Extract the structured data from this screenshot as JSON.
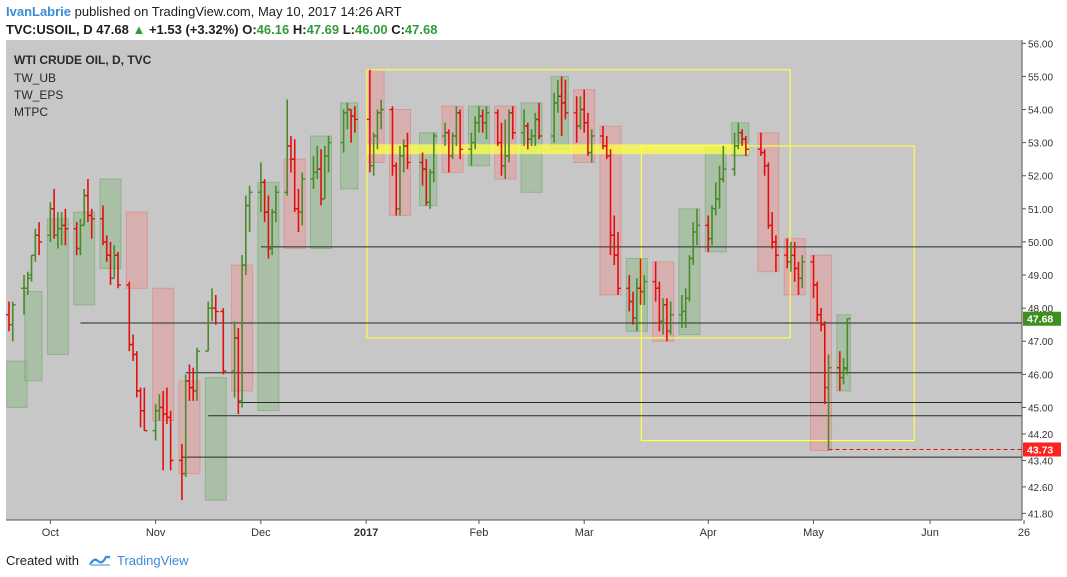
{
  "header": {
    "username": "IvanLabrie",
    "published": "published on TradingView.com, May 10, 2017 14:26 ART",
    "symbol": "TVC:USOIL, D",
    "last": "47.68",
    "change": "+1.53 (+3.32%)",
    "o_label": "O:",
    "o_value": "46.16",
    "h_label": "H:",
    "h_value": "47.69",
    "l_label": "L:",
    "l_value": "46.00",
    "c_label": "C:",
    "c_value": "47.68"
  },
  "footer": {
    "created": "Created with",
    "brand": "TradingView"
  },
  "colors": {
    "plot_bg": "#c7c7c7",
    "up": "#4a8a2a",
    "down": "#e01010",
    "box_yellow": "#ffff44",
    "price_tag_up": "#3f8f20",
    "price_tag_down": "#ff2020"
  },
  "chart_data": {
    "type": "bar",
    "title": "WTI CRUDE OIL, D, TVC",
    "indicators": [
      "TW_UB",
      "TW_EPS",
      "MTPC"
    ],
    "x_ticks": [
      "Oct",
      "Nov",
      "Dec",
      "2017",
      "Feb",
      "Mar",
      "Apr",
      "May",
      "Jun",
      "26"
    ],
    "y_ticks": [
      "56.00",
      "55.00",
      "54.00",
      "53.00",
      "52.00",
      "51.00",
      "50.00",
      "49.00",
      "48.00",
      "47.00",
      "46.00",
      "45.00",
      "44.20",
      "43.40",
      "42.60",
      "41.80"
    ],
    "ylim": [
      41.6,
      56.1
    ],
    "price_labels": [
      {
        "text": "47.68",
        "value": 47.68,
        "kind": "up"
      },
      {
        "text": "43.73",
        "value": 43.73,
        "kind": "down"
      }
    ],
    "horizontal_levels": [
      49.85,
      47.55,
      46.05,
      45.15,
      44.75,
      43.5
    ],
    "boxes": [
      {
        "from": "2017-01-03",
        "to": "2017-04-24",
        "high": 55.2,
        "low": 47.1
      },
      {
        "from": "2017-03-17",
        "to": "2017-05-27",
        "high": 52.9,
        "low": 44.0
      }
    ],
    "ohlc": [
      [
        "2016-09-29",
        47.8,
        48.2,
        47.3,
        47.5
      ],
      [
        "2016-09-30",
        47.5,
        48.2,
        47.0,
        48.1
      ],
      [
        "2016-10-03",
        48.6,
        49.0,
        47.8,
        48.6
      ],
      [
        "2016-10-04",
        48.6,
        49.1,
        48.4,
        48.9
      ],
      [
        "2016-10-05",
        49.0,
        49.6,
        48.8,
        49.6
      ],
      [
        "2016-10-06",
        49.6,
        50.4,
        49.4,
        50.2
      ],
      [
        "2016-10-07",
        50.2,
        50.6,
        49.6,
        50.0
      ],
      [
        "2016-10-10",
        50.2,
        51.2,
        50.0,
        51.0
      ],
      [
        "2016-10-11",
        51.0,
        51.6,
        50.1,
        50.2
      ],
      [
        "2016-10-12",
        50.2,
        50.9,
        49.8,
        50.4
      ],
      [
        "2016-10-13",
        50.4,
        50.9,
        49.9,
        50.5
      ],
      [
        "2016-10-14",
        50.5,
        51.0,
        49.9,
        50.4
      ],
      [
        "2016-10-17",
        50.4,
        50.6,
        49.6,
        49.8
      ],
      [
        "2016-10-18",
        49.8,
        50.7,
        49.6,
        50.5
      ],
      [
        "2016-10-19",
        50.5,
        51.6,
        50.5,
        51.4
      ],
      [
        "2016-10-20",
        51.4,
        51.9,
        50.6,
        50.8
      ],
      [
        "2016-10-21",
        50.8,
        51.0,
        50.1,
        50.7
      ],
      [
        "2016-10-24",
        50.7,
        51.1,
        49.9,
        50.0
      ],
      [
        "2016-10-25",
        50.0,
        50.2,
        49.4,
        49.6
      ],
      [
        "2016-10-26",
        49.6,
        50.0,
        48.7,
        48.9
      ],
      [
        "2016-10-27",
        48.9,
        49.9,
        48.9,
        49.6
      ],
      [
        "2016-10-28",
        49.6,
        49.7,
        48.6,
        48.7
      ],
      [
        "2016-10-31",
        48.7,
        48.8,
        46.7,
        46.9
      ],
      [
        "2016-11-01",
        46.9,
        47.2,
        46.4,
        46.6
      ],
      [
        "2016-11-02",
        46.6,
        46.7,
        45.3,
        45.5
      ],
      [
        "2016-11-03",
        45.5,
        45.6,
        44.4,
        44.9
      ],
      [
        "2016-11-04",
        44.9,
        45.6,
        44.3,
        44.3
      ],
      [
        "2016-11-07",
        44.3,
        45.1,
        44.0,
        44.9
      ],
      [
        "2016-11-08",
        44.9,
        45.4,
        44.6,
        45.0
      ],
      [
        "2016-11-09",
        45.0,
        45.5,
        43.1,
        44.8
      ],
      [
        "2016-11-10",
        44.8,
        45.6,
        44.5,
        44.7
      ],
      [
        "2016-11-11",
        44.7,
        44.9,
        43.1,
        43.4
      ],
      [
        "2016-11-14",
        43.4,
        43.9,
        42.2,
        43.0
      ],
      [
        "2016-11-15",
        43.0,
        46.0,
        42.9,
        45.8
      ],
      [
        "2016-11-16",
        45.8,
        46.3,
        45.2,
        45.6
      ],
      [
        "2016-11-17",
        45.6,
        46.2,
        45.2,
        45.5
      ],
      [
        "2016-11-18",
        45.5,
        46.8,
        45.2,
        46.7
      ],
      [
        "2016-11-21",
        46.7,
        48.2,
        46.7,
        48.0
      ],
      [
        "2016-11-22",
        48.0,
        48.6,
        47.6,
        48.0
      ],
      [
        "2016-11-23",
        48.0,
        48.4,
        47.5,
        47.9
      ],
      [
        "2016-11-25",
        47.9,
        48.0,
        46.0,
        46.1
      ],
      [
        "2016-11-28",
        46.1,
        47.6,
        45.3,
        47.1
      ],
      [
        "2016-11-29",
        47.1,
        47.4,
        44.8,
        45.2
      ],
      [
        "2016-11-30",
        45.2,
        49.6,
        45.0,
        49.3
      ],
      [
        "2016-12-01",
        49.3,
        51.4,
        49.0,
        51.1
      ],
      [
        "2016-12-02",
        51.1,
        51.7,
        50.3,
        51.5
      ],
      [
        "2016-12-05",
        51.5,
        52.4,
        50.9,
        51.8
      ],
      [
        "2016-12-06",
        51.8,
        51.9,
        50.6,
        50.9
      ],
      [
        "2016-12-07",
        50.9,
        51.4,
        49.5,
        49.8
      ],
      [
        "2016-12-08",
        49.8,
        51.0,
        49.6,
        50.9
      ],
      [
        "2016-12-09",
        50.9,
        51.7,
        50.6,
        51.5
      ],
      [
        "2016-12-12",
        51.5,
        54.3,
        51.4,
        52.9
      ],
      [
        "2016-12-13",
        52.9,
        53.2,
        52.1,
        52.5
      ],
      [
        "2016-12-14",
        52.5,
        53.1,
        50.9,
        51.0
      ],
      [
        "2016-12-15",
        51.0,
        51.6,
        50.3,
        50.9
      ],
      [
        "2016-12-16",
        50.9,
        52.1,
        50.5,
        51.9
      ],
      [
        "2016-12-19",
        51.9,
        52.6,
        51.6,
        52.1
      ],
      [
        "2016-12-20",
        52.1,
        52.9,
        51.9,
        52.2
      ],
      [
        "2016-12-21",
        52.2,
        52.8,
        51.1,
        51.3
      ],
      [
        "2016-12-22",
        51.3,
        52.9,
        51.3,
        52.6
      ],
      [
        "2016-12-23",
        52.6,
        53.2,
        52.1,
        53.0
      ],
      [
        "2016-12-27",
        53.0,
        54.0,
        52.7,
        53.9
      ],
      [
        "2016-12-28",
        53.9,
        54.2,
        53.4,
        54.0
      ],
      [
        "2016-12-29",
        54.0,
        54.0,
        53.0,
        53.8
      ],
      [
        "2016-12-30",
        53.8,
        54.1,
        53.3,
        53.7
      ],
      [
        "2017-01-03",
        53.7,
        55.2,
        52.1,
        52.3
      ],
      [
        "2017-01-04",
        52.3,
        53.3,
        52.0,
        53.2
      ],
      [
        "2017-01-05",
        53.2,
        54.0,
        52.8,
        53.9
      ],
      [
        "2017-01-06",
        53.9,
        54.3,
        53.4,
        54.0
      ],
      [
        "2017-01-09",
        54.0,
        54.1,
        52.0,
        52.3
      ],
      [
        "2017-01-10",
        52.3,
        52.4,
        50.8,
        51.0
      ],
      [
        "2017-01-11",
        51.0,
        52.9,
        50.8,
        52.6
      ],
      [
        "2017-01-12",
        52.6,
        53.1,
        52.1,
        52.9
      ],
      [
        "2017-01-13",
        52.9,
        53.3,
        52.2,
        52.4
      ],
      [
        "2017-01-17",
        52.4,
        52.7,
        51.7,
        52.2
      ],
      [
        "2017-01-18",
        52.2,
        52.5,
        51.1,
        51.2
      ],
      [
        "2017-01-19",
        51.2,
        52.2,
        51.0,
        52.1
      ],
      [
        "2017-01-20",
        52.1,
        53.3,
        51.8,
        53.2
      ],
      [
        "2017-01-23",
        53.2,
        53.6,
        52.9,
        53.3
      ],
      [
        "2017-01-24",
        53.3,
        53.4,
        52.1,
        52.6
      ],
      [
        "2017-01-25",
        52.6,
        53.3,
        52.5,
        53.2
      ],
      [
        "2017-01-26",
        53.2,
        54.1,
        52.9,
        53.9
      ],
      [
        "2017-01-27",
        53.9,
        54.0,
        52.5,
        52.8
      ],
      [
        "2017-01-30",
        52.8,
        53.3,
        52.3,
        53.0
      ],
      [
        "2017-01-31",
        53.0,
        53.8,
        52.8,
        53.6
      ],
      [
        "2017-02-01",
        53.6,
        54.1,
        53.3,
        53.8
      ],
      [
        "2017-02-02",
        53.8,
        54.0,
        53.3,
        53.6
      ],
      [
        "2017-02-03",
        53.6,
        54.1,
        53.1,
        53.9
      ],
      [
        "2017-02-06",
        53.9,
        54.0,
        52.9,
        53.0
      ],
      [
        "2017-02-07",
        53.0,
        53.6,
        52.0,
        52.3
      ],
      [
        "2017-02-08",
        52.3,
        53.7,
        51.9,
        52.6
      ],
      [
        "2017-02-09",
        52.6,
        54.0,
        52.4,
        53.9
      ],
      [
        "2017-02-10",
        53.9,
        54.1,
        53.1,
        53.3
      ],
      [
        "2017-02-13",
        53.3,
        54.0,
        52.9,
        53.5
      ],
      [
        "2017-02-14",
        53.5,
        53.6,
        52.8,
        53.1
      ],
      [
        "2017-02-15",
        53.1,
        53.4,
        52.9,
        53.2
      ],
      [
        "2017-02-16",
        53.2,
        53.9,
        52.9,
        53.7
      ],
      [
        "2017-02-17",
        53.7,
        54.2,
        53.1,
        53.2
      ],
      [
        "2017-02-21",
        53.2,
        54.5,
        53.0,
        54.2
      ],
      [
        "2017-02-22",
        54.2,
        54.9,
        53.9,
        54.4
      ],
      [
        "2017-02-23",
        54.4,
        55.0,
        53.2,
        54.2
      ],
      [
        "2017-02-24",
        54.2,
        54.9,
        53.7,
        53.9
      ],
      [
        "2017-02-27",
        53.9,
        54.4,
        53.0,
        53.5
      ],
      [
        "2017-02-28",
        53.5,
        54.4,
        53.4,
        54.0
      ],
      [
        "2017-03-01",
        54.0,
        54.6,
        53.3,
        53.6
      ],
      [
        "2017-03-02",
        53.6,
        53.9,
        52.6,
        52.7
      ],
      [
        "2017-03-03",
        52.7,
        53.4,
        52.4,
        53.2
      ],
      [
        "2017-03-06",
        53.2,
        53.5,
        52.8,
        52.9
      ],
      [
        "2017-03-07",
        52.9,
        53.2,
        52.5,
        52.6
      ],
      [
        "2017-03-08",
        52.6,
        52.8,
        49.6,
        50.2
      ],
      [
        "2017-03-09",
        50.2,
        50.8,
        49.3,
        49.6
      ],
      [
        "2017-03-10",
        49.6,
        50.3,
        48.4,
        48.6
      ],
      [
        "2017-03-13",
        48.6,
        49.0,
        47.9,
        48.2
      ],
      [
        "2017-03-14",
        48.2,
        48.5,
        47.5,
        47.7
      ],
      [
        "2017-03-15",
        47.7,
        48.9,
        47.3,
        48.6
      ],
      [
        "2017-03-16",
        48.6,
        49.5,
        48.1,
        48.5
      ],
      [
        "2017-03-17",
        48.5,
        49.0,
        48.1,
        48.8
      ],
      [
        "2017-03-20",
        48.8,
        49.4,
        48.2,
        48.6
      ],
      [
        "2017-03-21",
        48.6,
        48.8,
        47.3,
        47.6
      ],
      [
        "2017-03-22",
        47.6,
        48.3,
        47.2,
        48.1
      ],
      [
        "2017-03-23",
        48.1,
        48.3,
        47.0,
        47.3
      ],
      [
        "2017-03-24",
        47.3,
        48.2,
        47.2,
        47.8
      ],
      [
        "2017-03-27",
        47.8,
        48.4,
        47.4,
        47.9
      ],
      [
        "2017-03-28",
        47.9,
        48.6,
        47.4,
        48.3
      ],
      [
        "2017-03-29",
        48.3,
        49.6,
        48.2,
        49.5
      ],
      [
        "2017-03-30",
        49.5,
        50.6,
        49.3,
        50.3
      ],
      [
        "2017-03-31",
        50.3,
        51.0,
        49.9,
        50.5
      ],
      [
        "2017-04-03",
        50.5,
        50.8,
        49.7,
        50.1
      ],
      [
        "2017-04-04",
        50.1,
        51.1,
        49.9,
        51.0
      ],
      [
        "2017-04-05",
        51.0,
        51.8,
        50.8,
        51.3
      ],
      [
        "2017-04-06",
        51.3,
        52.3,
        51.0,
        51.9
      ],
      [
        "2017-04-07",
        51.9,
        52.9,
        51.8,
        52.2
      ],
      [
        "2017-04-10",
        52.2,
        53.3,
        52.0,
        52.9
      ],
      [
        "2017-04-11",
        52.9,
        53.6,
        52.8,
        53.3
      ],
      [
        "2017-04-12",
        53.3,
        53.4,
        52.9,
        53.1
      ],
      [
        "2017-04-13",
        53.1,
        53.2,
        52.6,
        52.8
      ],
      [
        "2017-04-17",
        52.8,
        53.3,
        52.6,
        52.7
      ],
      [
        "2017-04-18",
        52.7,
        52.8,
        52.0,
        52.3
      ],
      [
        "2017-04-19",
        52.3,
        52.4,
        50.4,
        50.5
      ],
      [
        "2017-04-20",
        50.5,
        50.9,
        49.8,
        50.0
      ],
      [
        "2017-04-21",
        50.0,
        50.2,
        49.1,
        49.6
      ],
      [
        "2017-04-24",
        49.6,
        50.1,
        49.2,
        49.4
      ],
      [
        "2017-04-25",
        49.4,
        50.0,
        49.1,
        49.6
      ],
      [
        "2017-04-26",
        49.6,
        50.0,
        48.8,
        49.2
      ],
      [
        "2017-04-27",
        49.2,
        49.4,
        48.4,
        48.9
      ],
      [
        "2017-04-28",
        48.9,
        49.6,
        48.6,
        49.4
      ],
      [
        "2017-05-01",
        49.4,
        49.6,
        48.3,
        48.7
      ],
      [
        "2017-05-02",
        48.7,
        48.8,
        47.6,
        47.8
      ],
      [
        "2017-05-03",
        47.8,
        48.0,
        47.3,
        47.5
      ],
      [
        "2017-05-04",
        47.5,
        47.6,
        45.1,
        45.6
      ],
      [
        "2017-05-05",
        45.6,
        46.6,
        43.7,
        46.2
      ],
      [
        "2017-05-08",
        46.2,
        46.7,
        45.5,
        45.9
      ],
      [
        "2017-05-09",
        45.9,
        46.5,
        45.7,
        46.2
      ],
      [
        "2017-05-10",
        46.16,
        47.69,
        46.0,
        47.68
      ]
    ],
    "background_shadings": [
      [
        "2016-09-29",
        "2016-10-03",
        45.0,
        46.4,
        "up"
      ],
      [
        "2016-10-04",
        "2016-10-07",
        45.8,
        48.5,
        "up"
      ],
      [
        "2016-10-10",
        "2016-10-14",
        46.6,
        50.7,
        "up"
      ],
      [
        "2016-10-17",
        "2016-10-21",
        48.1,
        50.9,
        "up"
      ],
      [
        "2016-10-24",
        "2016-10-28",
        49.2,
        51.9,
        "up"
      ],
      [
        "2016-10-31",
        "2016-11-04",
        48.6,
        50.9,
        "down"
      ],
      [
        "2016-11-07",
        "2016-11-11",
        44.6,
        48.6,
        "down"
      ],
      [
        "2016-11-14",
        "2016-11-18",
        43.0,
        45.8,
        "down"
      ],
      [
        "2016-11-21",
        "2016-11-25",
        42.2,
        45.9,
        "up"
      ],
      [
        "2016-11-28",
        "2016-12-02",
        45.5,
        49.3,
        "down"
      ],
      [
        "2016-12-05",
        "2016-12-09",
        44.9,
        51.8,
        "up"
      ],
      [
        "2016-12-12",
        "2016-12-16",
        49.8,
        52.5,
        "down"
      ],
      [
        "2016-12-19",
        "2016-12-23",
        49.8,
        53.2,
        "up"
      ],
      [
        "2016-12-27",
        "2016-12-30",
        51.6,
        54.2,
        "up"
      ],
      [
        "2017-01-03",
        "2017-01-06",
        52.4,
        55.2,
        "down"
      ],
      [
        "2017-01-09",
        "2017-01-13",
        50.8,
        54.0,
        "down"
      ],
      [
        "2017-01-17",
        "2017-01-20",
        51.1,
        53.3,
        "up"
      ],
      [
        "2017-01-23",
        "2017-01-27",
        52.1,
        54.1,
        "down"
      ],
      [
        "2017-01-30",
        "2017-02-03",
        52.3,
        54.1,
        "up"
      ],
      [
        "2017-02-06",
        "2017-02-10",
        51.9,
        54.1,
        "down"
      ],
      [
        "2017-02-13",
        "2017-02-17",
        51.5,
        54.2,
        "up"
      ],
      [
        "2017-02-21",
        "2017-02-24",
        52.8,
        55.0,
        "up"
      ],
      [
        "2017-02-27",
        "2017-03-03",
        52.4,
        54.6,
        "down"
      ],
      [
        "2017-03-06",
        "2017-03-10",
        48.4,
        53.5,
        "down"
      ],
      [
        "2017-03-13",
        "2017-03-17",
        47.3,
        49.5,
        "up"
      ],
      [
        "2017-03-20",
        "2017-03-24",
        47.0,
        49.4,
        "down"
      ],
      [
        "2017-03-27",
        "2017-03-31",
        47.2,
        51.0,
        "up"
      ],
      [
        "2017-04-03",
        "2017-04-07",
        49.7,
        52.9,
        "up"
      ],
      [
        "2017-04-10",
        "2017-04-13",
        52.6,
        53.6,
        "up"
      ],
      [
        "2017-04-17",
        "2017-04-21",
        49.1,
        53.3,
        "down"
      ],
      [
        "2017-04-24",
        "2017-04-28",
        48.4,
        50.1,
        "down"
      ],
      [
        "2017-05-01",
        "2017-05-05",
        43.7,
        49.6,
        "down"
      ],
      [
        "2017-05-08",
        "2017-05-10",
        45.5,
        47.8,
        "up"
      ]
    ]
  }
}
